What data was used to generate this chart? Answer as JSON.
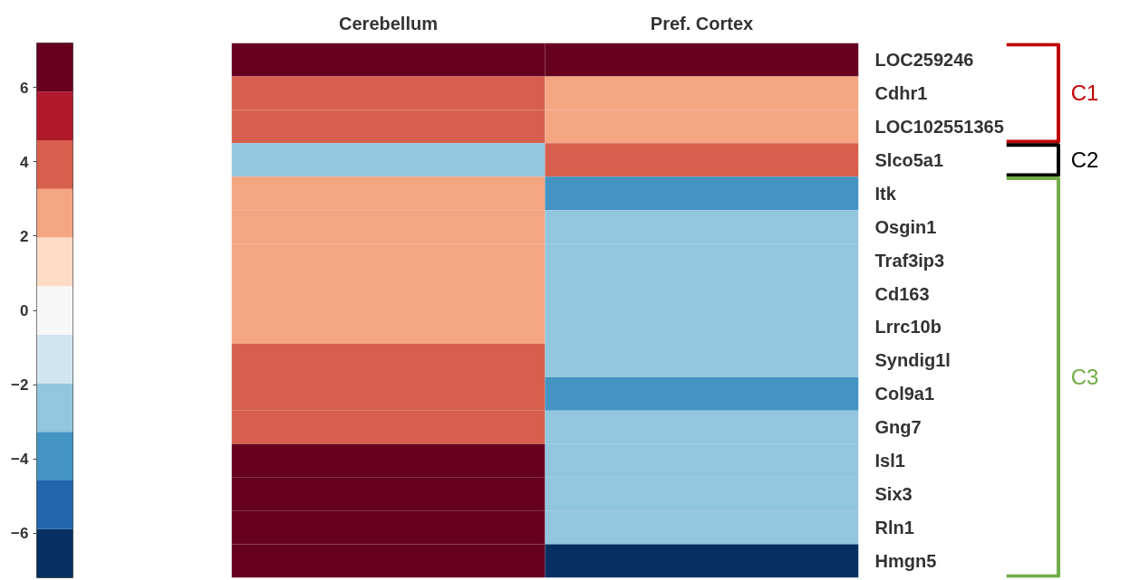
{
  "chart_data": {
    "type": "heatmap",
    "categories": [
      "Cerebellum",
      "Pref. Cortex"
    ],
    "y_categories": [
      "LOC259246",
      "Cdhr1",
      "LOC102551365",
      "Slco5a1",
      "Itk",
      "Osgin1",
      "Traf3ip3",
      "Cd163",
      "Lrrc10b",
      "Syndig1l",
      "Col9a1",
      "Gng7",
      "Isl1",
      "Six3",
      "Rln1",
      "Hmgn5"
    ],
    "cells": [
      [
        6.5,
        6.5
      ],
      [
        3.9,
        2.6
      ],
      [
        3.9,
        2.6
      ],
      [
        -2.6,
        3.9
      ],
      [
        2.6,
        -3.9
      ],
      [
        2.6,
        -2.6
      ],
      [
        2.6,
        -2.6
      ],
      [
        2.6,
        -2.6
      ],
      [
        2.6,
        -2.6
      ],
      [
        3.9,
        -2.6
      ],
      [
        3.9,
        -3.9
      ],
      [
        3.9,
        -2.6
      ],
      [
        6.5,
        -2.6
      ],
      [
        6.5,
        -2.6
      ],
      [
        6.5,
        -2.6
      ],
      [
        6.5,
        -6.5
      ]
    ],
    "colors": [
      "#053061",
      "#2166ac",
      "#4393c3",
      "#92c5de",
      "#d1e5f0",
      "#f7f7f7",
      "#fddbc7",
      "#f4a582",
      "#d6604d",
      "#b2182b",
      "#67001f"
    ],
    "clim": [
      -7.2,
      7.2
    ],
    "cticks": [
      -6,
      -4,
      -2,
      0,
      2,
      4,
      6
    ],
    "annotations": [
      "C1",
      "C2",
      "C3"
    ]
  }
}
